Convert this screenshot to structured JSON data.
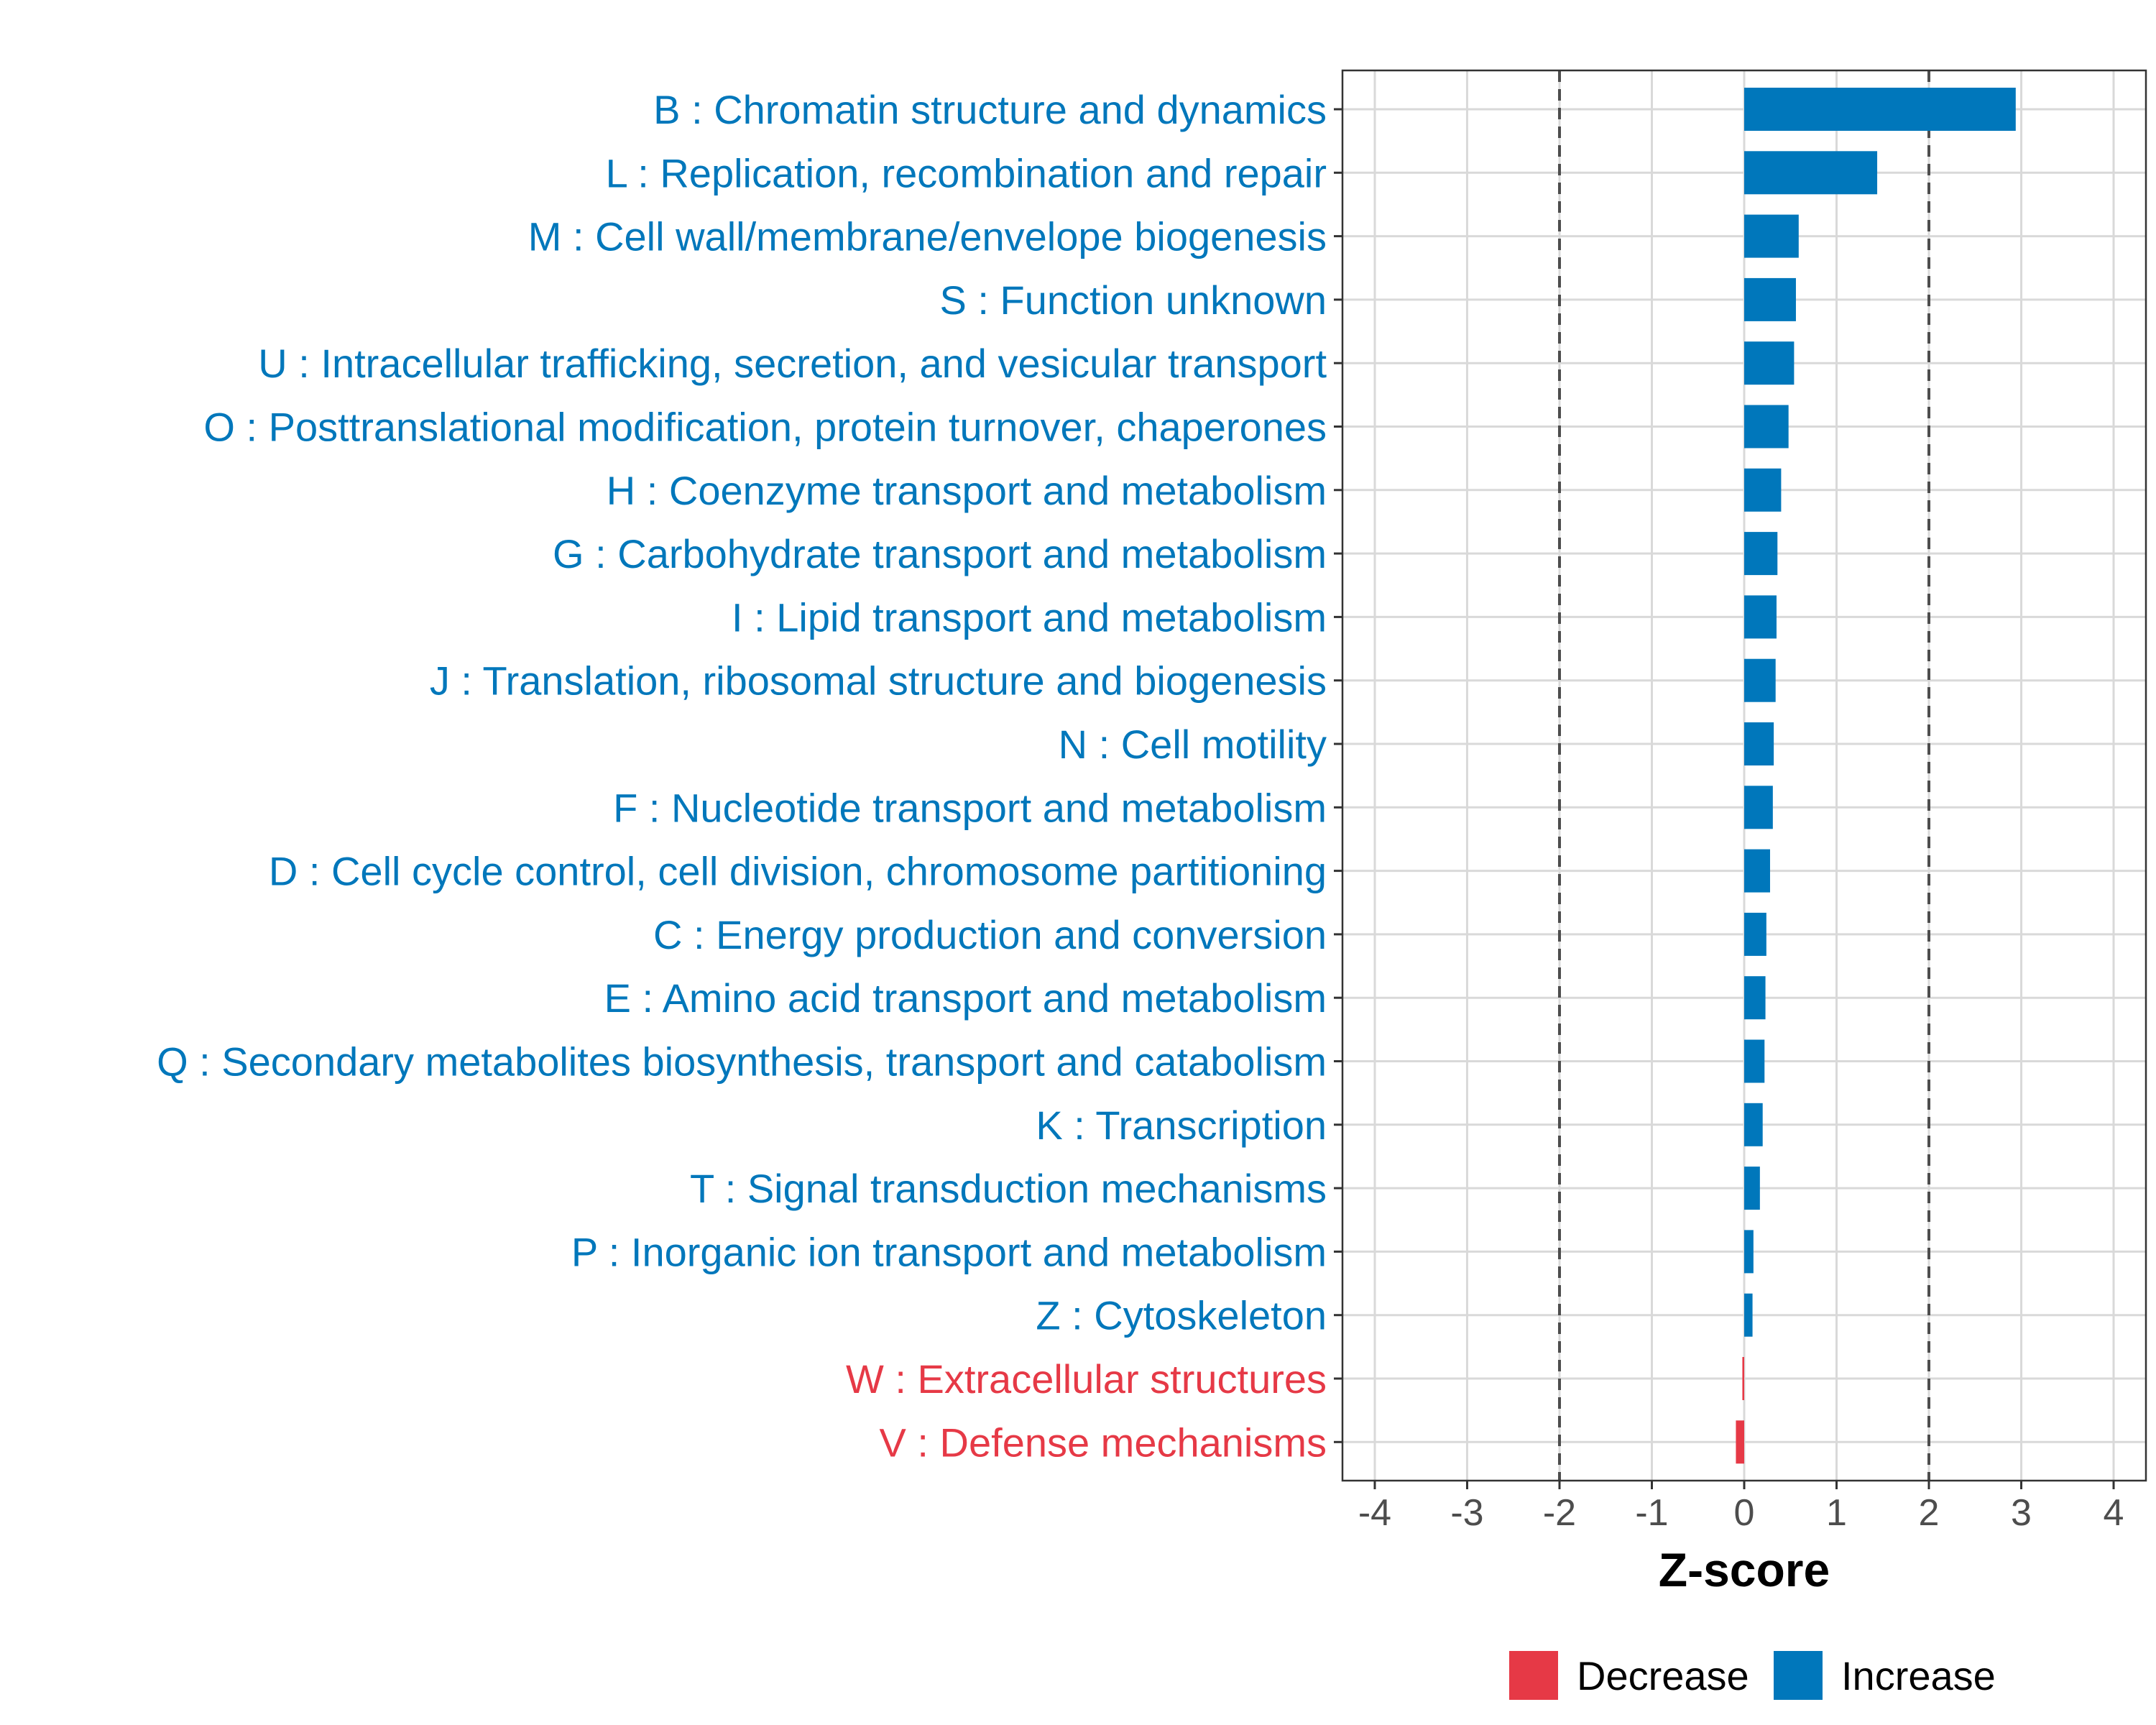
{
  "chart_data": {
    "type": "bar",
    "orientation": "horizontal",
    "title": "",
    "xlabel": "Z-score",
    "ylabel": "",
    "xlim": [
      -4.35,
      4.35
    ],
    "xticks": [
      -4,
      -3,
      -2,
      -1,
      0,
      1,
      2,
      3,
      4
    ],
    "reference_lines": [
      -2,
      2
    ],
    "grid": true,
    "legend_position": "bottom",
    "legend": [
      {
        "name": "Decrease",
        "color": "#E63946"
      },
      {
        "name": "Increase",
        "color": "#0077BB"
      }
    ],
    "categories": [
      "B : Chromatin structure and dynamics",
      "L : Replication, recombination and repair",
      "M : Cell wall/membrane/envelope biogenesis",
      "S : Function unknown",
      "U : Intracellular trafficking, secretion, and vesicular transport",
      "O : Posttranslational modification, protein turnover, chaperones",
      "H : Coenzyme transport and metabolism",
      "G : Carbohydrate transport and metabolism",
      "I : Lipid transport and metabolism",
      "J : Translation, ribosomal structure and biogenesis",
      "N : Cell motility",
      "F : Nucleotide transport and metabolism",
      "D : Cell cycle control, cell division, chromosome partitioning",
      "C : Energy production and conversion",
      "E : Amino acid transport and metabolism",
      "Q : Secondary metabolites biosynthesis, transport and catabolism",
      "K : Transcription",
      "T : Signal transduction mechanisms",
      "P : Inorganic ion transport and metabolism",
      "Z : Cytoskeleton",
      "W : Extracellular structures",
      "V : Defense mechanisms"
    ],
    "values": [
      2.94,
      1.44,
      0.59,
      0.56,
      0.54,
      0.48,
      0.4,
      0.36,
      0.35,
      0.34,
      0.32,
      0.31,
      0.28,
      0.24,
      0.23,
      0.22,
      0.2,
      0.17,
      0.1,
      0.09,
      -0.02,
      -0.09
    ],
    "directions": [
      "Increase",
      "Increase",
      "Increase",
      "Increase",
      "Increase",
      "Increase",
      "Increase",
      "Increase",
      "Increase",
      "Increase",
      "Increase",
      "Increase",
      "Increase",
      "Increase",
      "Increase",
      "Increase",
      "Increase",
      "Increase",
      "Increase",
      "Increase",
      "Decrease",
      "Decrease"
    ]
  }
}
